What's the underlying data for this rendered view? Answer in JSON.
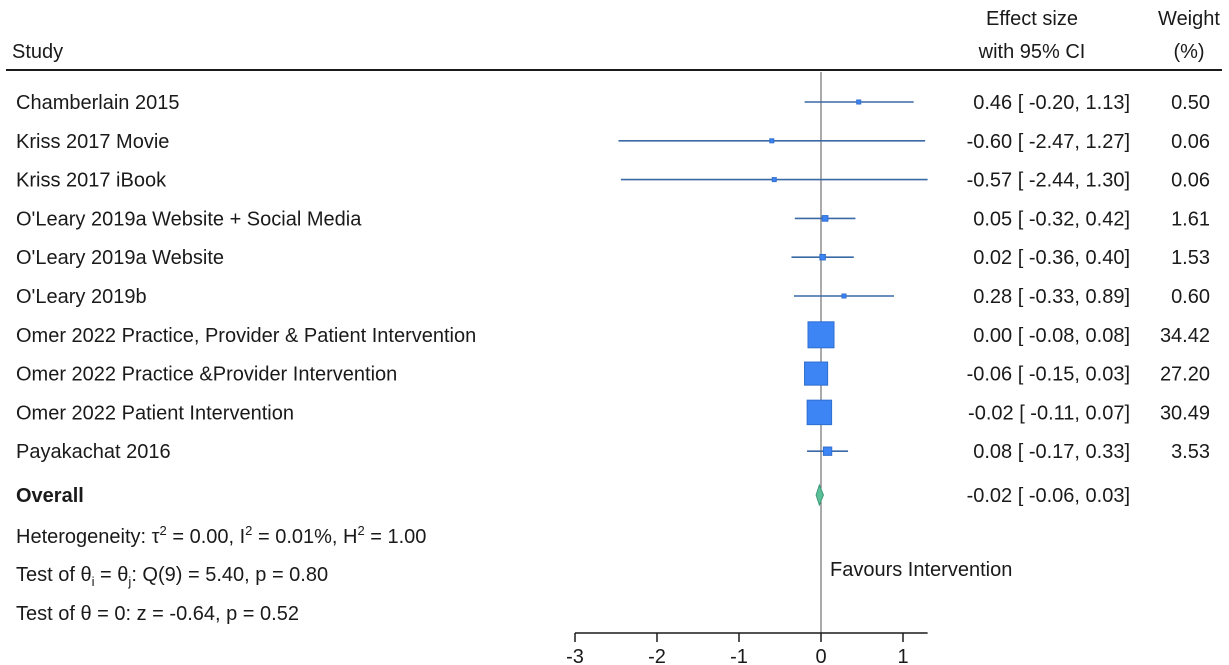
{
  "header": {
    "study_label": "Study",
    "effect_label_1": "Effect size",
    "effect_label_2": "with 95% CI",
    "weight_label_1": "Weight",
    "weight_label_2": "(%)"
  },
  "chart_data": {
    "type": "forest",
    "xlim": [
      -3,
      1.3
    ],
    "xticks": [
      -3,
      -2,
      -1,
      0,
      1
    ],
    "reference_line": 0,
    "favours_label": "Favours Intervention",
    "studies": [
      {
        "name": "Chamberlain 2015",
        "effect": 0.46,
        "lower": -0.2,
        "upper": 1.13,
        "weight": 0.5,
        "ci_text": "0.46 [ -0.20,  1.13]",
        "weight_text": "0.50"
      },
      {
        "name": "Kriss 2017 Movie",
        "effect": -0.6,
        "lower": -2.47,
        "upper": 1.27,
        "weight": 0.06,
        "ci_text": "-0.60 [ -2.47,  1.27]",
        "weight_text": "0.06"
      },
      {
        "name": "Kriss 2017 iBook",
        "effect": -0.57,
        "lower": -2.44,
        "upper": 1.3,
        "weight": 0.06,
        "ci_text": "-0.57 [ -2.44,  1.30]",
        "weight_text": "0.06"
      },
      {
        "name": "O'Leary 2019a Website + Social Media",
        "effect": 0.05,
        "lower": -0.32,
        "upper": 0.42,
        "weight": 1.61,
        "ci_text": "0.05 [ -0.32,  0.42]",
        "weight_text": "1.61"
      },
      {
        "name": "O'Leary 2019a Website",
        "effect": 0.02,
        "lower": -0.36,
        "upper": 0.4,
        "weight": 1.53,
        "ci_text": "0.02 [ -0.36,  0.40]",
        "weight_text": "1.53"
      },
      {
        "name": "O'Leary 2019b",
        "effect": 0.28,
        "lower": -0.33,
        "upper": 0.89,
        "weight": 0.6,
        "ci_text": "0.28 [ -0.33,  0.89]",
        "weight_text": "0.60"
      },
      {
        "name": "Omer 2022 Practice, Provider & Patient Intervention",
        "effect": 0.0,
        "lower": -0.08,
        "upper": 0.08,
        "weight": 34.42,
        "ci_text": "0.00 [ -0.08,  0.08]",
        "weight_text": "34.42"
      },
      {
        "name": "Omer 2022 Practice &Provider Intervention",
        "effect": -0.06,
        "lower": -0.15,
        "upper": 0.03,
        "weight": 27.2,
        "ci_text": "-0.06 [ -0.15,  0.03]",
        "weight_text": "27.20"
      },
      {
        "name": "Omer 2022 Patient Intervention",
        "effect": -0.02,
        "lower": -0.11,
        "upper": 0.07,
        "weight": 30.49,
        "ci_text": "-0.02 [ -0.11,  0.07]",
        "weight_text": "30.49"
      },
      {
        "name": "Payakachat 2016",
        "effect": 0.08,
        "lower": -0.17,
        "upper": 0.33,
        "weight": 3.53,
        "ci_text": "0.08 [ -0.17,  0.33]",
        "weight_text": "3.53"
      }
    ],
    "overall": {
      "name": "Overall",
      "effect": -0.02,
      "lower": -0.06,
      "upper": 0.03,
      "ci_text": "-0.02 [ -0.06,  0.03]"
    }
  },
  "stats": {
    "heterogeneity_prefix": "Heterogeneity: ",
    "tau_symbol": "τ",
    "tau_value": " = 0.00, I",
    "i_value": " = 0.01%, H",
    "h_value": " = 1.00",
    "sq": "2",
    "test1_prefix": "Test of θ",
    "sub_i": "i",
    "sub_j": "j",
    "test1_mid": " = θ",
    "test1_suffix": ": Q(9) = 5.40, p = 0.80",
    "test2": "Test of θ = 0: z = -0.64, p = 0.52"
  },
  "colors": {
    "box": "#3d84f5",
    "ci": "#3a6aa6",
    "diamond": "#5bbf9a"
  }
}
